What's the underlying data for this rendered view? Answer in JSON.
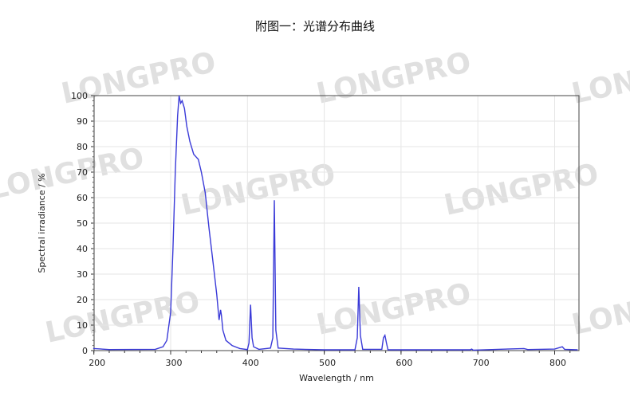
{
  "title": "附图一：光谱分布曲线",
  "watermark": "LONGPRO",
  "chart_data": {
    "type": "line",
    "title": "附图一：光谱分布曲线",
    "xlabel": "Wavelength / nm",
    "ylabel": "Spectral irradiance / %",
    "xlim": [
      200,
      830
    ],
    "ylim": [
      0,
      100
    ],
    "xticks": [
      200,
      300,
      400,
      500,
      600,
      700,
      800
    ],
    "yticks": [
      0,
      10,
      20,
      30,
      40,
      50,
      60,
      70,
      80,
      90,
      100
    ],
    "grid": true,
    "color": "#3a3ad8",
    "x": [
      200,
      220,
      280,
      290,
      295,
      300,
      303,
      306,
      309,
      311,
      313,
      315,
      318,
      321,
      325,
      330,
      333,
      336,
      340,
      345,
      350,
      355,
      360,
      363,
      365,
      366,
      368,
      372,
      380,
      390,
      400,
      402,
      404,
      406,
      408,
      415,
      430,
      433,
      435,
      437,
      440,
      460,
      500,
      540,
      543,
      545,
      547,
      550,
      575,
      577,
      579,
      581,
      583,
      690,
      692,
      694,
      760,
      765,
      800,
      810,
      813,
      830
    ],
    "y": [
      0.8,
      0.4,
      0.5,
      1.5,
      4,
      15,
      40,
      70,
      92,
      100,
      97,
      98,
      95,
      88,
      82,
      77,
      76,
      75,
      70,
      62,
      48,
      35,
      22,
      12,
      16,
      14,
      8,
      4,
      2,
      0.8,
      0.4,
      3,
      18,
      5,
      1.5,
      0.5,
      1,
      5,
      59,
      8,
      1,
      0.6,
      0.3,
      0.3,
      5,
      25,
      6,
      0.5,
      0.5,
      5,
      6,
      3,
      0.3,
      0.3,
      0.6,
      0.2,
      0.8,
      0.4,
      0.6,
      1.5,
      0.5,
      0.3
    ]
  }
}
